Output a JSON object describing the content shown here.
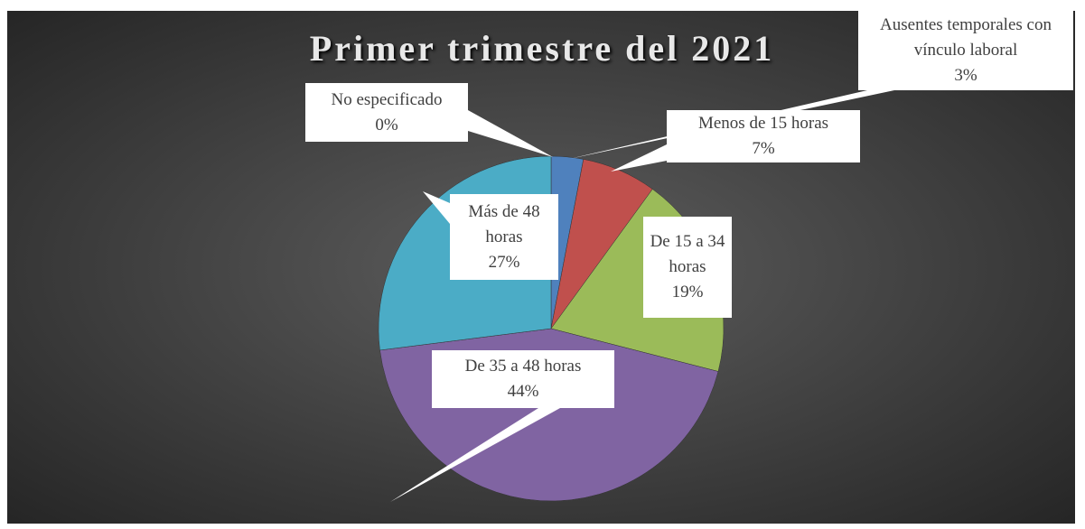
{
  "chart_data": {
    "type": "pie",
    "title": "Primer trimestre del 2021",
    "categories": [
      "No especificado",
      "Ausentes temporales con vínculo laboral",
      "Menos de 15 horas",
      "De 15 a 34 horas",
      "De 35 a 48 horas",
      "Más de 48 horas"
    ],
    "values": [
      0,
      3,
      7,
      19,
      44,
      27
    ],
    "value_labels": [
      "0%",
      "3%",
      "7%",
      "19%",
      "44%",
      "27%"
    ],
    "colors": [
      "#9a9a9a",
      "#4f81bd",
      "#c0504d",
      "#9bbb59",
      "#8064a2",
      "#4bacc6"
    ]
  }
}
